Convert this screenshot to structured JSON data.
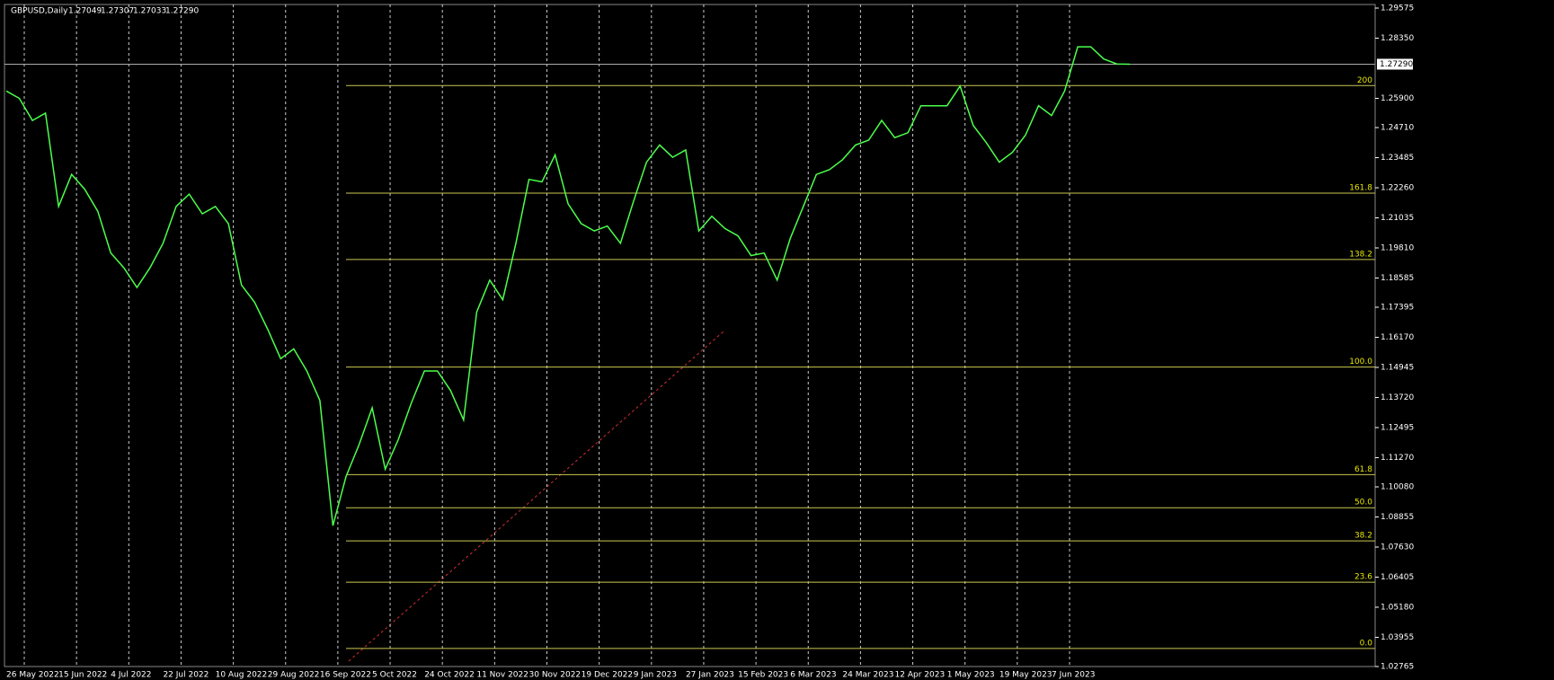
{
  "chart_data": {
    "type": "line",
    "header": {
      "symbol": "GBPUSD,Daily",
      "ohlc": [
        "1.27049",
        "1.27307",
        "1.27033",
        "1.27290"
      ]
    },
    "categories": [
      "26 May 2022",
      null,
      null,
      null,
      "15 Jun 2022",
      null,
      null,
      null,
      "4 Jul 2022",
      null,
      null,
      null,
      "22 Jul 2022",
      null,
      null,
      null,
      "10 Aug 2022",
      null,
      null,
      null,
      "29 Aug 2022",
      null,
      null,
      null,
      "16 Sep 2022",
      null,
      null,
      null,
      "5 Oct 2022",
      null,
      null,
      null,
      "24 Oct 2022",
      null,
      null,
      null,
      "11 Nov 2022",
      null,
      null,
      null,
      "30 Nov 2022",
      null,
      null,
      null,
      "19 Dec 2022",
      null,
      null,
      null,
      "9 Jan 2023",
      null,
      null,
      null,
      "27 Jan 2023",
      null,
      null,
      null,
      "15 Feb 2023",
      null,
      null,
      null,
      "6 Mar 2023",
      null,
      null,
      null,
      "24 Mar 2023",
      null,
      null,
      null,
      "12 Apr 2023",
      null,
      null,
      null,
      "1 May 2023",
      null,
      null,
      null,
      "19 May 2023",
      null,
      null,
      null,
      "7 Jun 2023",
      null,
      null,
      null,
      null,
      null,
      null
    ],
    "series": [
      {
        "name": "GBPUSD",
        "color": "#4cff4c",
        "values": [
          1.262,
          1.259,
          1.25,
          1.253,
          1.215,
          1.228,
          1.222,
          1.213,
          1.196,
          1.19,
          1.182,
          1.19,
          1.2,
          1.215,
          1.22,
          1.212,
          1.215,
          1.208,
          1.183,
          1.176,
          1.165,
          1.153,
          1.157,
          1.148,
          1.136,
          1.085,
          1.105,
          1.118,
          1.133,
          1.108,
          1.12,
          1.135,
          1.148,
          1.148,
          1.14,
          1.128,
          1.172,
          1.185,
          1.177,
          1.2,
          1.226,
          1.225,
          1.236,
          1.216,
          1.208,
          1.205,
          1.207,
          1.2,
          1.217,
          1.233,
          1.24,
          1.235,
          1.238,
          1.205,
          1.211,
          1.206,
          1.203,
          1.195,
          1.196,
          1.185,
          1.202,
          1.215,
          1.228,
          1.23,
          1.234,
          1.24,
          1.242,
          1.25,
          1.243,
          1.245,
          1.256,
          1.256,
          1.256,
          1.264,
          1.248,
          1.241,
          1.233,
          1.237,
          1.244,
          1.256,
          1.252,
          1.262,
          1.28,
          1.28,
          1.275,
          1.273,
          1.2729
        ]
      }
    ],
    "ylim": [
      1.02765,
      1.29575
    ],
    "yticks": [
      {
        "value": 1.29575,
        "label": "1.29575"
      },
      {
        "value": 1.2835,
        "label": "1.28350"
      },
      {
        "value": 1.259,
        "label": "1.25900"
      },
      {
        "value": 1.2471,
        "label": "1.24710"
      },
      {
        "value": 1.23485,
        "label": "1.23485"
      },
      {
        "value": 1.2226,
        "label": "1.22260"
      },
      {
        "value": 1.21035,
        "label": "1.21035"
      },
      {
        "value": 1.1981,
        "label": "1.19810"
      },
      {
        "value": 1.18585,
        "label": "1.18585"
      },
      {
        "value": 1.17395,
        "label": "1.17395"
      },
      {
        "value": 1.1617,
        "label": "1.16170"
      },
      {
        "value": 1.14945,
        "label": "1.14945"
      },
      {
        "value": 1.1372,
        "label": "1.13720"
      },
      {
        "value": 1.12495,
        "label": "1.12495"
      },
      {
        "value": 1.1127,
        "label": "1.11270"
      },
      {
        "value": 1.1008,
        "label": "1.10080"
      },
      {
        "value": 1.08855,
        "label": "1.08855"
      },
      {
        "value": 1.0763,
        "label": "1.07630"
      },
      {
        "value": 1.06405,
        "label": "1.06405"
      },
      {
        "value": 1.0518,
        "label": "1.05180"
      },
      {
        "value": 1.03955,
        "label": "1.03955"
      },
      {
        "value": 1.02765,
        "label": "1.02765"
      }
    ],
    "current_price": {
      "value": 1.2729,
      "label": "1.27290"
    },
    "fib_levels": [
      {
        "label": "200",
        "value": 1.2642
      },
      {
        "label": "161.8",
        "value": 1.2204
      },
      {
        "label": "138.2",
        "value": 1.1934
      },
      {
        "label": "100.0",
        "value": 1.1496
      },
      {
        "label": "61.8",
        "value": 1.1058
      },
      {
        "label": "50.0",
        "value": 1.0923
      },
      {
        "label": "38.2",
        "value": 1.0788
      },
      {
        "label": "23.6",
        "value": 1.062
      },
      {
        "label": "0.0",
        "value": 1.035
      }
    ],
    "grid": true
  }
}
